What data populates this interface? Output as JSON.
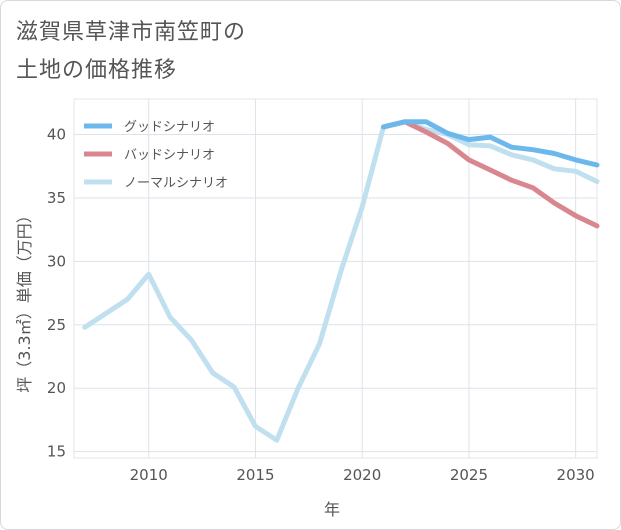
{
  "title_line1": "滋賀県草津市南笠町の",
  "title_line2": "土地の価格推移",
  "chart_data": {
    "type": "line",
    "xlabel": "年",
    "ylabel": "坪（3.3㎡）単価（万円）",
    "xlim": [
      2006.5,
      2031
    ],
    "ylim": [
      14.5,
      42.8
    ],
    "xticks": [
      2010,
      2015,
      2020,
      2025,
      2030
    ],
    "yticks": [
      15,
      20,
      25,
      30,
      35,
      40
    ],
    "grid": true,
    "legend_position": "top-left",
    "series": [
      {
        "name": "グッドシナリオ",
        "color": "#6cb8ec",
        "x": [
          2021,
          2022,
          2023,
          2024,
          2025,
          2026,
          2027,
          2028,
          2029,
          2030,
          2031
        ],
        "y": [
          40.6,
          41.0,
          41.0,
          40.1,
          39.6,
          39.8,
          39.0,
          38.8,
          38.5,
          38.0,
          37.6
        ]
      },
      {
        "name": "バッドシナリオ",
        "color": "#d9878f",
        "x": [
          2021,
          2022,
          2023,
          2024,
          2025,
          2026,
          2027,
          2028,
          2029,
          2030,
          2031
        ],
        "y": [
          40.6,
          41.0,
          40.2,
          39.3,
          38.0,
          37.2,
          36.4,
          35.8,
          34.6,
          33.6,
          32.8
        ]
      },
      {
        "name": "ノーマルシナリオ",
        "color": "#c1e0ef",
        "x": [
          2007,
          2008,
          2009,
          2010,
          2011,
          2012,
          2013,
          2014,
          2015,
          2016,
          2017,
          2018,
          2019,
          2020,
          2021,
          2022,
          2023,
          2024,
          2025,
          2026,
          2027,
          2028,
          2029,
          2030,
          2031
        ],
        "y": [
          24.8,
          25.9,
          27.0,
          29.0,
          25.6,
          23.8,
          21.2,
          20.1,
          17.0,
          15.9,
          20.0,
          23.5,
          29.2,
          34.3,
          40.6,
          41.0,
          40.4,
          40.0,
          39.2,
          39.1,
          38.4,
          38.0,
          37.3,
          37.1,
          36.3
        ]
      }
    ]
  }
}
